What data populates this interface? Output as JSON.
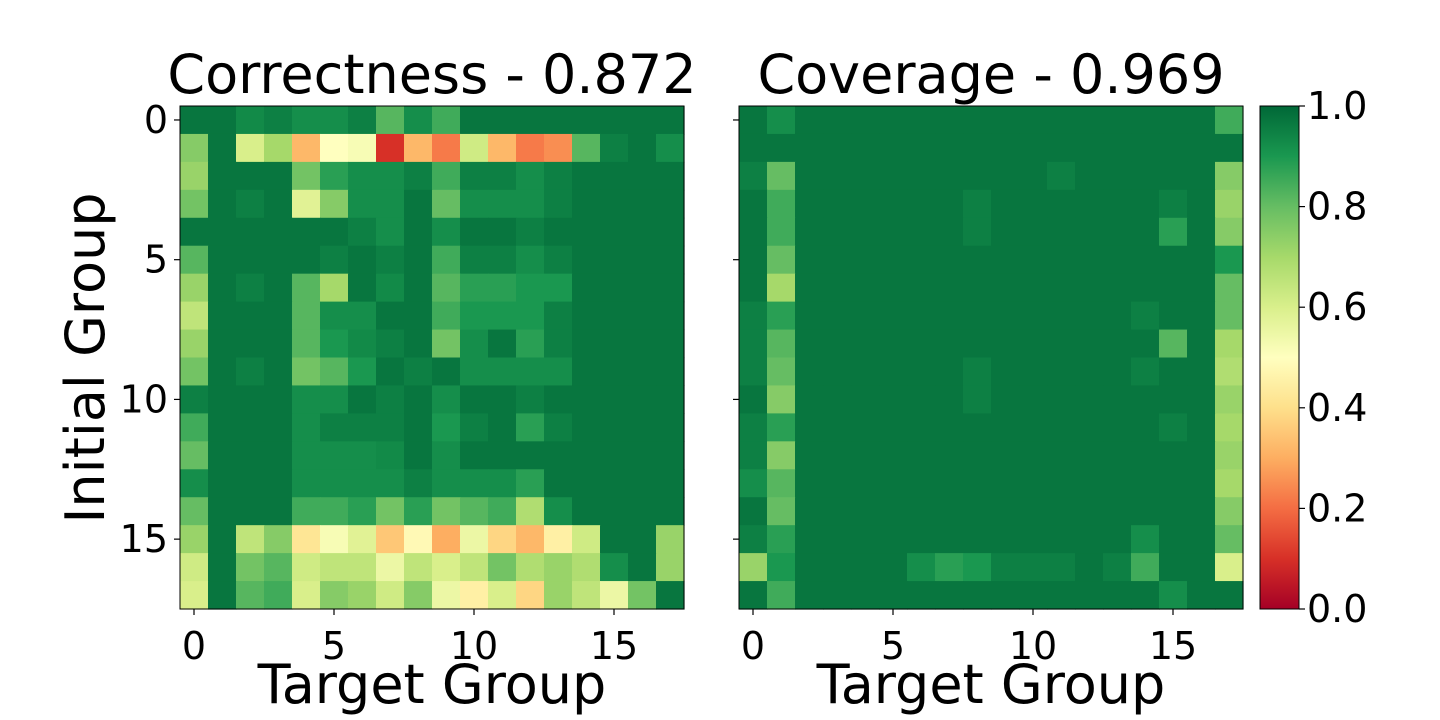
{
  "chart_data": [
    {
      "type": "heatmap",
      "title": "Correctness - 0.872",
      "xlabel": "Target Group",
      "ylabel": "Initial Group",
      "xlim": [
        0,
        17
      ],
      "ylim": [
        0,
        17
      ],
      "x_ticks": [
        "0",
        "5",
        "10",
        "15"
      ],
      "y_ticks": [
        "0",
        "5",
        "10",
        "15"
      ],
      "rows": 18,
      "cols": 18,
      "values": [
        [
          0.97,
          0.97,
          0.93,
          0.95,
          0.92,
          0.92,
          0.95,
          0.82,
          0.92,
          0.85,
          0.97,
          0.97,
          0.97,
          0.97,
          0.97,
          0.97,
          0.97,
          0.97
        ],
        [
          0.75,
          0.97,
          0.6,
          0.7,
          0.32,
          0.5,
          0.52,
          0.1,
          0.32,
          0.22,
          0.62,
          0.32,
          0.22,
          0.25,
          0.82,
          0.95,
          0.97,
          0.92
        ],
        [
          0.72,
          0.97,
          0.97,
          0.97,
          0.78,
          0.88,
          0.92,
          0.92,
          0.95,
          0.85,
          0.95,
          0.95,
          0.92,
          0.95,
          0.97,
          0.97,
          0.97,
          0.97
        ],
        [
          0.78,
          0.97,
          0.95,
          0.97,
          0.58,
          0.75,
          0.92,
          0.92,
          0.97,
          0.8,
          0.92,
          0.92,
          0.92,
          0.95,
          0.97,
          0.97,
          0.97,
          0.97
        ],
        [
          0.97,
          0.97,
          0.97,
          0.97,
          0.97,
          0.97,
          0.95,
          0.92,
          0.97,
          0.92,
          0.97,
          0.97,
          0.95,
          0.97,
          0.97,
          0.97,
          0.97,
          0.97
        ],
        [
          0.82,
          0.97,
          0.97,
          0.97,
          0.97,
          0.95,
          0.97,
          0.95,
          0.97,
          0.85,
          0.95,
          0.95,
          0.92,
          0.95,
          0.97,
          0.97,
          0.97,
          0.97
        ],
        [
          0.72,
          0.97,
          0.95,
          0.97,
          0.82,
          0.7,
          0.97,
          0.93,
          0.97,
          0.82,
          0.88,
          0.88,
          0.9,
          0.9,
          0.97,
          0.97,
          0.97,
          0.97
        ],
        [
          0.65,
          0.97,
          0.97,
          0.97,
          0.82,
          0.92,
          0.92,
          0.97,
          0.97,
          0.85,
          0.9,
          0.9,
          0.9,
          0.95,
          0.97,
          0.97,
          0.97,
          0.97
        ],
        [
          0.72,
          0.97,
          0.97,
          0.97,
          0.82,
          0.9,
          0.93,
          0.95,
          0.97,
          0.78,
          0.92,
          0.97,
          0.88,
          0.95,
          0.97,
          0.97,
          0.97,
          0.97
        ],
        [
          0.78,
          0.97,
          0.95,
          0.97,
          0.78,
          0.82,
          0.9,
          0.97,
          0.95,
          0.97,
          0.92,
          0.92,
          0.92,
          0.92,
          0.97,
          0.97,
          0.97,
          0.97
        ],
        [
          0.95,
          0.97,
          0.97,
          0.97,
          0.92,
          0.92,
          0.97,
          0.95,
          0.97,
          0.92,
          0.97,
          0.97,
          0.95,
          0.97,
          0.97,
          0.97,
          0.97,
          0.97
        ],
        [
          0.85,
          0.97,
          0.97,
          0.97,
          0.92,
          0.95,
          0.95,
          0.95,
          0.97,
          0.9,
          0.95,
          0.97,
          0.88,
          0.95,
          0.97,
          0.97,
          0.97,
          0.97
        ],
        [
          0.8,
          0.97,
          0.97,
          0.97,
          0.92,
          0.92,
          0.92,
          0.93,
          0.97,
          0.92,
          0.97,
          0.97,
          0.97,
          0.97,
          0.97,
          0.97,
          0.97,
          0.97
        ],
        [
          0.92,
          0.97,
          0.97,
          0.97,
          0.92,
          0.92,
          0.92,
          0.92,
          0.95,
          0.92,
          0.92,
          0.92,
          0.88,
          0.97,
          0.97,
          0.97,
          0.97,
          0.97
        ],
        [
          0.8,
          0.97,
          0.97,
          0.97,
          0.85,
          0.85,
          0.88,
          0.78,
          0.88,
          0.78,
          0.82,
          0.85,
          0.68,
          0.92,
          0.97,
          0.97,
          0.97,
          0.97
        ],
        [
          0.72,
          0.97,
          0.65,
          0.75,
          0.42,
          0.52,
          0.58,
          0.35,
          0.48,
          0.3,
          0.55,
          0.38,
          0.32,
          0.45,
          0.62,
          0.97,
          0.97,
          0.72
        ],
        [
          0.62,
          0.97,
          0.78,
          0.82,
          0.62,
          0.65,
          0.65,
          0.55,
          0.65,
          0.6,
          0.65,
          0.78,
          0.68,
          0.72,
          0.68,
          0.92,
          0.97,
          0.72
        ],
        [
          0.6,
          0.97,
          0.82,
          0.85,
          0.6,
          0.75,
          0.72,
          0.62,
          0.75,
          0.55,
          0.45,
          0.6,
          0.38,
          0.72,
          0.65,
          0.55,
          0.78,
          0.97
        ]
      ]
    },
    {
      "type": "heatmap",
      "title": "Coverage - 0.969",
      "xlabel": "Target Group",
      "ylabel": "",
      "xlim": [
        0,
        17
      ],
      "ylim": [
        0,
        17
      ],
      "x_ticks": [
        "0",
        "5",
        "10",
        "15"
      ],
      "rows": 18,
      "cols": 18,
      "values": [
        [
          0.97,
          0.92,
          0.97,
          0.97,
          0.97,
          0.97,
          0.97,
          0.97,
          0.97,
          0.97,
          0.97,
          0.97,
          0.97,
          0.97,
          0.97,
          0.97,
          0.97,
          0.85
        ],
        [
          0.97,
          0.97,
          0.97,
          0.97,
          0.97,
          0.97,
          0.97,
          0.97,
          0.97,
          0.97,
          0.97,
          0.97,
          0.97,
          0.97,
          0.97,
          0.97,
          0.97,
          0.97
        ],
        [
          0.95,
          0.8,
          0.97,
          0.97,
          0.97,
          0.97,
          0.97,
          0.97,
          0.97,
          0.97,
          0.97,
          0.95,
          0.97,
          0.97,
          0.97,
          0.97,
          0.97,
          0.75
        ],
        [
          0.97,
          0.85,
          0.97,
          0.97,
          0.97,
          0.97,
          0.97,
          0.97,
          0.95,
          0.97,
          0.97,
          0.97,
          0.97,
          0.97,
          0.97,
          0.95,
          0.97,
          0.72
        ],
        [
          0.97,
          0.85,
          0.97,
          0.97,
          0.97,
          0.97,
          0.97,
          0.97,
          0.95,
          0.97,
          0.97,
          0.97,
          0.97,
          0.97,
          0.97,
          0.88,
          0.97,
          0.75
        ],
        [
          0.97,
          0.8,
          0.97,
          0.97,
          0.97,
          0.97,
          0.97,
          0.97,
          0.97,
          0.97,
          0.97,
          0.97,
          0.97,
          0.97,
          0.97,
          0.97,
          0.97,
          0.9
        ],
        [
          0.97,
          0.7,
          0.97,
          0.97,
          0.97,
          0.97,
          0.97,
          0.97,
          0.97,
          0.97,
          0.97,
          0.97,
          0.97,
          0.97,
          0.97,
          0.97,
          0.97,
          0.8
        ],
        [
          0.95,
          0.88,
          0.97,
          0.97,
          0.97,
          0.97,
          0.97,
          0.97,
          0.97,
          0.97,
          0.97,
          0.97,
          0.97,
          0.97,
          0.95,
          0.97,
          0.97,
          0.8
        ],
        [
          0.95,
          0.82,
          0.97,
          0.97,
          0.97,
          0.97,
          0.97,
          0.97,
          0.97,
          0.97,
          0.97,
          0.97,
          0.97,
          0.97,
          0.97,
          0.82,
          0.97,
          0.7
        ],
        [
          0.95,
          0.8,
          0.97,
          0.97,
          0.97,
          0.97,
          0.97,
          0.97,
          0.95,
          0.97,
          0.97,
          0.97,
          0.97,
          0.97,
          0.95,
          0.97,
          0.97,
          0.68
        ],
        [
          0.97,
          0.75,
          0.97,
          0.97,
          0.97,
          0.97,
          0.97,
          0.97,
          0.95,
          0.97,
          0.97,
          0.97,
          0.97,
          0.97,
          0.97,
          0.97,
          0.97,
          0.72
        ],
        [
          0.95,
          0.88,
          0.97,
          0.97,
          0.97,
          0.97,
          0.97,
          0.97,
          0.97,
          0.97,
          0.97,
          0.97,
          0.97,
          0.97,
          0.97,
          0.95,
          0.97,
          0.7
        ],
        [
          0.95,
          0.75,
          0.97,
          0.97,
          0.97,
          0.97,
          0.97,
          0.97,
          0.97,
          0.97,
          0.97,
          0.97,
          0.97,
          0.97,
          0.97,
          0.97,
          0.97,
          0.72
        ],
        [
          0.92,
          0.82,
          0.97,
          0.97,
          0.97,
          0.97,
          0.97,
          0.97,
          0.97,
          0.97,
          0.97,
          0.97,
          0.97,
          0.97,
          0.97,
          0.97,
          0.97,
          0.7
        ],
        [
          0.97,
          0.8,
          0.97,
          0.97,
          0.97,
          0.97,
          0.97,
          0.97,
          0.97,
          0.97,
          0.97,
          0.97,
          0.97,
          0.97,
          0.97,
          0.97,
          0.97,
          0.75
        ],
        [
          0.95,
          0.88,
          0.97,
          0.97,
          0.97,
          0.97,
          0.97,
          0.97,
          0.97,
          0.97,
          0.97,
          0.97,
          0.97,
          0.97,
          0.92,
          0.97,
          0.97,
          0.8
        ],
        [
          0.72,
          0.9,
          0.97,
          0.97,
          0.97,
          0.97,
          0.92,
          0.88,
          0.9,
          0.95,
          0.95,
          0.95,
          0.97,
          0.95,
          0.85,
          0.97,
          0.97,
          0.6
        ],
        [
          0.97,
          0.85,
          0.97,
          0.97,
          0.97,
          0.97,
          0.97,
          0.97,
          0.97,
          0.97,
          0.97,
          0.97,
          0.97,
          0.97,
          0.97,
          0.92,
          0.97,
          0.97
        ]
      ]
    }
  ],
  "colorbar": {
    "colormap": "RdYlGn",
    "range": [
      0,
      1
    ],
    "ticks": [
      "0.0",
      "0.2",
      "0.4",
      "0.6",
      "0.8",
      "1.0"
    ]
  }
}
